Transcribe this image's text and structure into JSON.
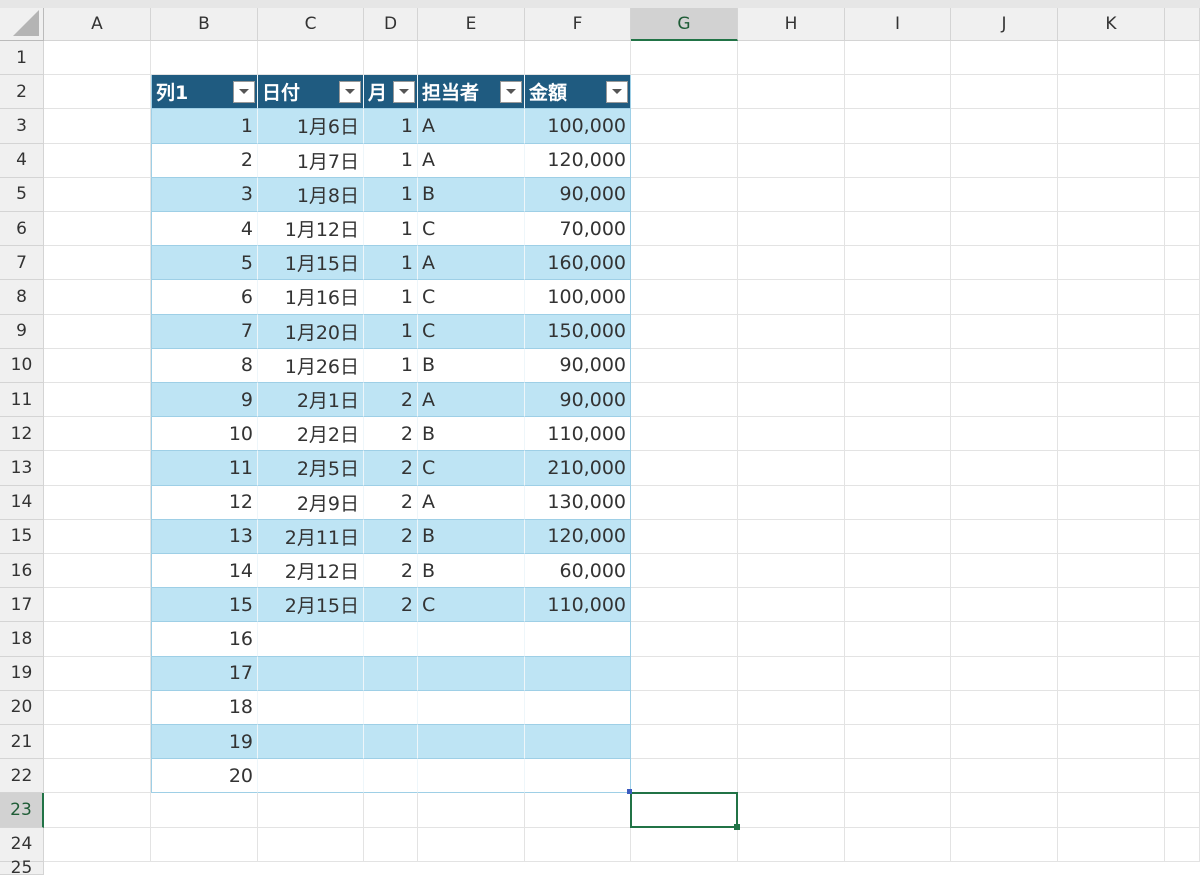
{
  "columns": [
    "A",
    "B",
    "C",
    "D",
    "E",
    "F",
    "G",
    "H",
    "I",
    "J",
    "K",
    ""
  ],
  "rows": [
    "1",
    "2",
    "3",
    "4",
    "5",
    "6",
    "7",
    "8",
    "9",
    "10",
    "11",
    "12",
    "13",
    "14",
    "15",
    "16",
    "17",
    "18",
    "19",
    "20",
    "21",
    "22",
    "23",
    "24",
    "25"
  ],
  "selected_cell": "G23",
  "colors": {
    "table_header": "#1f5b80",
    "band": "#bee4f4",
    "selection": "#217346"
  },
  "table": {
    "headers": [
      "列1",
      "日付",
      "月",
      "担当者",
      "金額"
    ],
    "rows": [
      [
        "1",
        "1月6日",
        "1",
        "A",
        "100,000"
      ],
      [
        "2",
        "1月7日",
        "1",
        "A",
        "120,000"
      ],
      [
        "3",
        "1月8日",
        "1",
        "B",
        "90,000"
      ],
      [
        "4",
        "1月12日",
        "1",
        "C",
        "70,000"
      ],
      [
        "5",
        "1月15日",
        "1",
        "A",
        "160,000"
      ],
      [
        "6",
        "1月16日",
        "1",
        "C",
        "100,000"
      ],
      [
        "7",
        "1月20日",
        "1",
        "C",
        "150,000"
      ],
      [
        "8",
        "1月26日",
        "1",
        "B",
        "90,000"
      ],
      [
        "9",
        "2月1日",
        "2",
        "A",
        "90,000"
      ],
      [
        "10",
        "2月2日",
        "2",
        "B",
        "110,000"
      ],
      [
        "11",
        "2月5日",
        "2",
        "C",
        "210,000"
      ],
      [
        "12",
        "2月9日",
        "2",
        "A",
        "130,000"
      ],
      [
        "13",
        "2月11日",
        "2",
        "B",
        "120,000"
      ],
      [
        "14",
        "2月12日",
        "2",
        "B",
        "60,000"
      ],
      [
        "15",
        "2月15日",
        "2",
        "C",
        "110,000"
      ],
      [
        "16",
        "",
        "",
        "",
        ""
      ],
      [
        "17",
        "",
        "",
        "",
        ""
      ],
      [
        "18",
        "",
        "",
        "",
        ""
      ],
      [
        "19",
        "",
        "",
        "",
        ""
      ],
      [
        "20",
        "",
        "",
        "",
        ""
      ]
    ]
  }
}
